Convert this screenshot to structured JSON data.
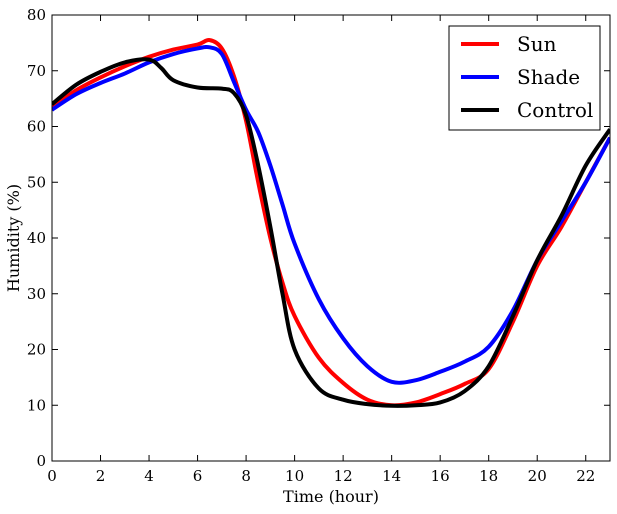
{
  "chart_data": {
    "type": "line",
    "title": "",
    "xlabel": "Time (hour)",
    "ylabel": "Humidity (%)",
    "xlim": [
      0,
      23
    ],
    "ylim": [
      0,
      80
    ],
    "xticks": [
      0,
      2,
      4,
      6,
      8,
      10,
      12,
      14,
      16,
      18,
      20,
      22
    ],
    "yticks": [
      0,
      10,
      20,
      30,
      40,
      50,
      60,
      70,
      80
    ],
    "grid": false,
    "legend_position": "top-right",
    "series": [
      {
        "name": "Sun",
        "color": "#ff0000",
        "points": [
          [
            0,
            63.5
          ],
          [
            1,
            66.5
          ],
          [
            2,
            68.8
          ],
          [
            3,
            70.8
          ],
          [
            4,
            72.5
          ],
          [
            5,
            73.8
          ],
          [
            6,
            74.7
          ],
          [
            6.5,
            75.5
          ],
          [
            7,
            74
          ],
          [
            7.5,
            69
          ],
          [
            8,
            61
          ],
          [
            8.5,
            50
          ],
          [
            9,
            40
          ],
          [
            9.5,
            32
          ],
          [
            10,
            26
          ],
          [
            11,
            18.5
          ],
          [
            12,
            14
          ],
          [
            13,
            11
          ],
          [
            14,
            10
          ],
          [
            15,
            10.5
          ],
          [
            16,
            12
          ],
          [
            17,
            13.8
          ],
          [
            18,
            16.5
          ],
          [
            19,
            25
          ],
          [
            20,
            35
          ],
          [
            21,
            42
          ],
          [
            22,
            50
          ],
          [
            23,
            58
          ]
        ]
      },
      {
        "name": "Shade",
        "color": "#0000ff",
        "points": [
          [
            0,
            63
          ],
          [
            1,
            65.8
          ],
          [
            2,
            67.8
          ],
          [
            3,
            69.5
          ],
          [
            4,
            71.5
          ],
          [
            5,
            73
          ],
          [
            6,
            74
          ],
          [
            6.5,
            74.2
          ],
          [
            7,
            73
          ],
          [
            7.5,
            68
          ],
          [
            8,
            63
          ],
          [
            8.5,
            59
          ],
          [
            9,
            53
          ],
          [
            9.5,
            46
          ],
          [
            10,
            39
          ],
          [
            11,
            29
          ],
          [
            12,
            22
          ],
          [
            13,
            17
          ],
          [
            14,
            14.2
          ],
          [
            15,
            14.5
          ],
          [
            16,
            16
          ],
          [
            17,
            17.8
          ],
          [
            18,
            20.5
          ],
          [
            19,
            27
          ],
          [
            20,
            36
          ],
          [
            21,
            43
          ],
          [
            22,
            50
          ],
          [
            23,
            58
          ]
        ]
      },
      {
        "name": "Control",
        "color": "#000000",
        "points": [
          [
            0,
            64
          ],
          [
            1,
            67.5
          ],
          [
            2,
            69.8
          ],
          [
            3,
            71.5
          ],
          [
            4,
            72
          ],
          [
            4.5,
            70.5
          ],
          [
            5,
            68.3
          ],
          [
            6,
            67
          ],
          [
            7,
            66.8
          ],
          [
            7.5,
            66
          ],
          [
            8,
            62
          ],
          [
            8.5,
            53
          ],
          [
            9,
            42
          ],
          [
            9.5,
            30
          ],
          [
            10,
            20
          ],
          [
            11,
            13
          ],
          [
            12,
            11
          ],
          [
            13,
            10.2
          ],
          [
            14,
            9.9
          ],
          [
            15,
            10
          ],
          [
            16,
            10.5
          ],
          [
            17,
            12.5
          ],
          [
            18,
            17
          ],
          [
            19,
            26
          ],
          [
            20,
            36
          ],
          [
            21,
            44
          ],
          [
            22,
            53
          ],
          [
            23,
            59.5
          ]
        ]
      }
    ]
  }
}
